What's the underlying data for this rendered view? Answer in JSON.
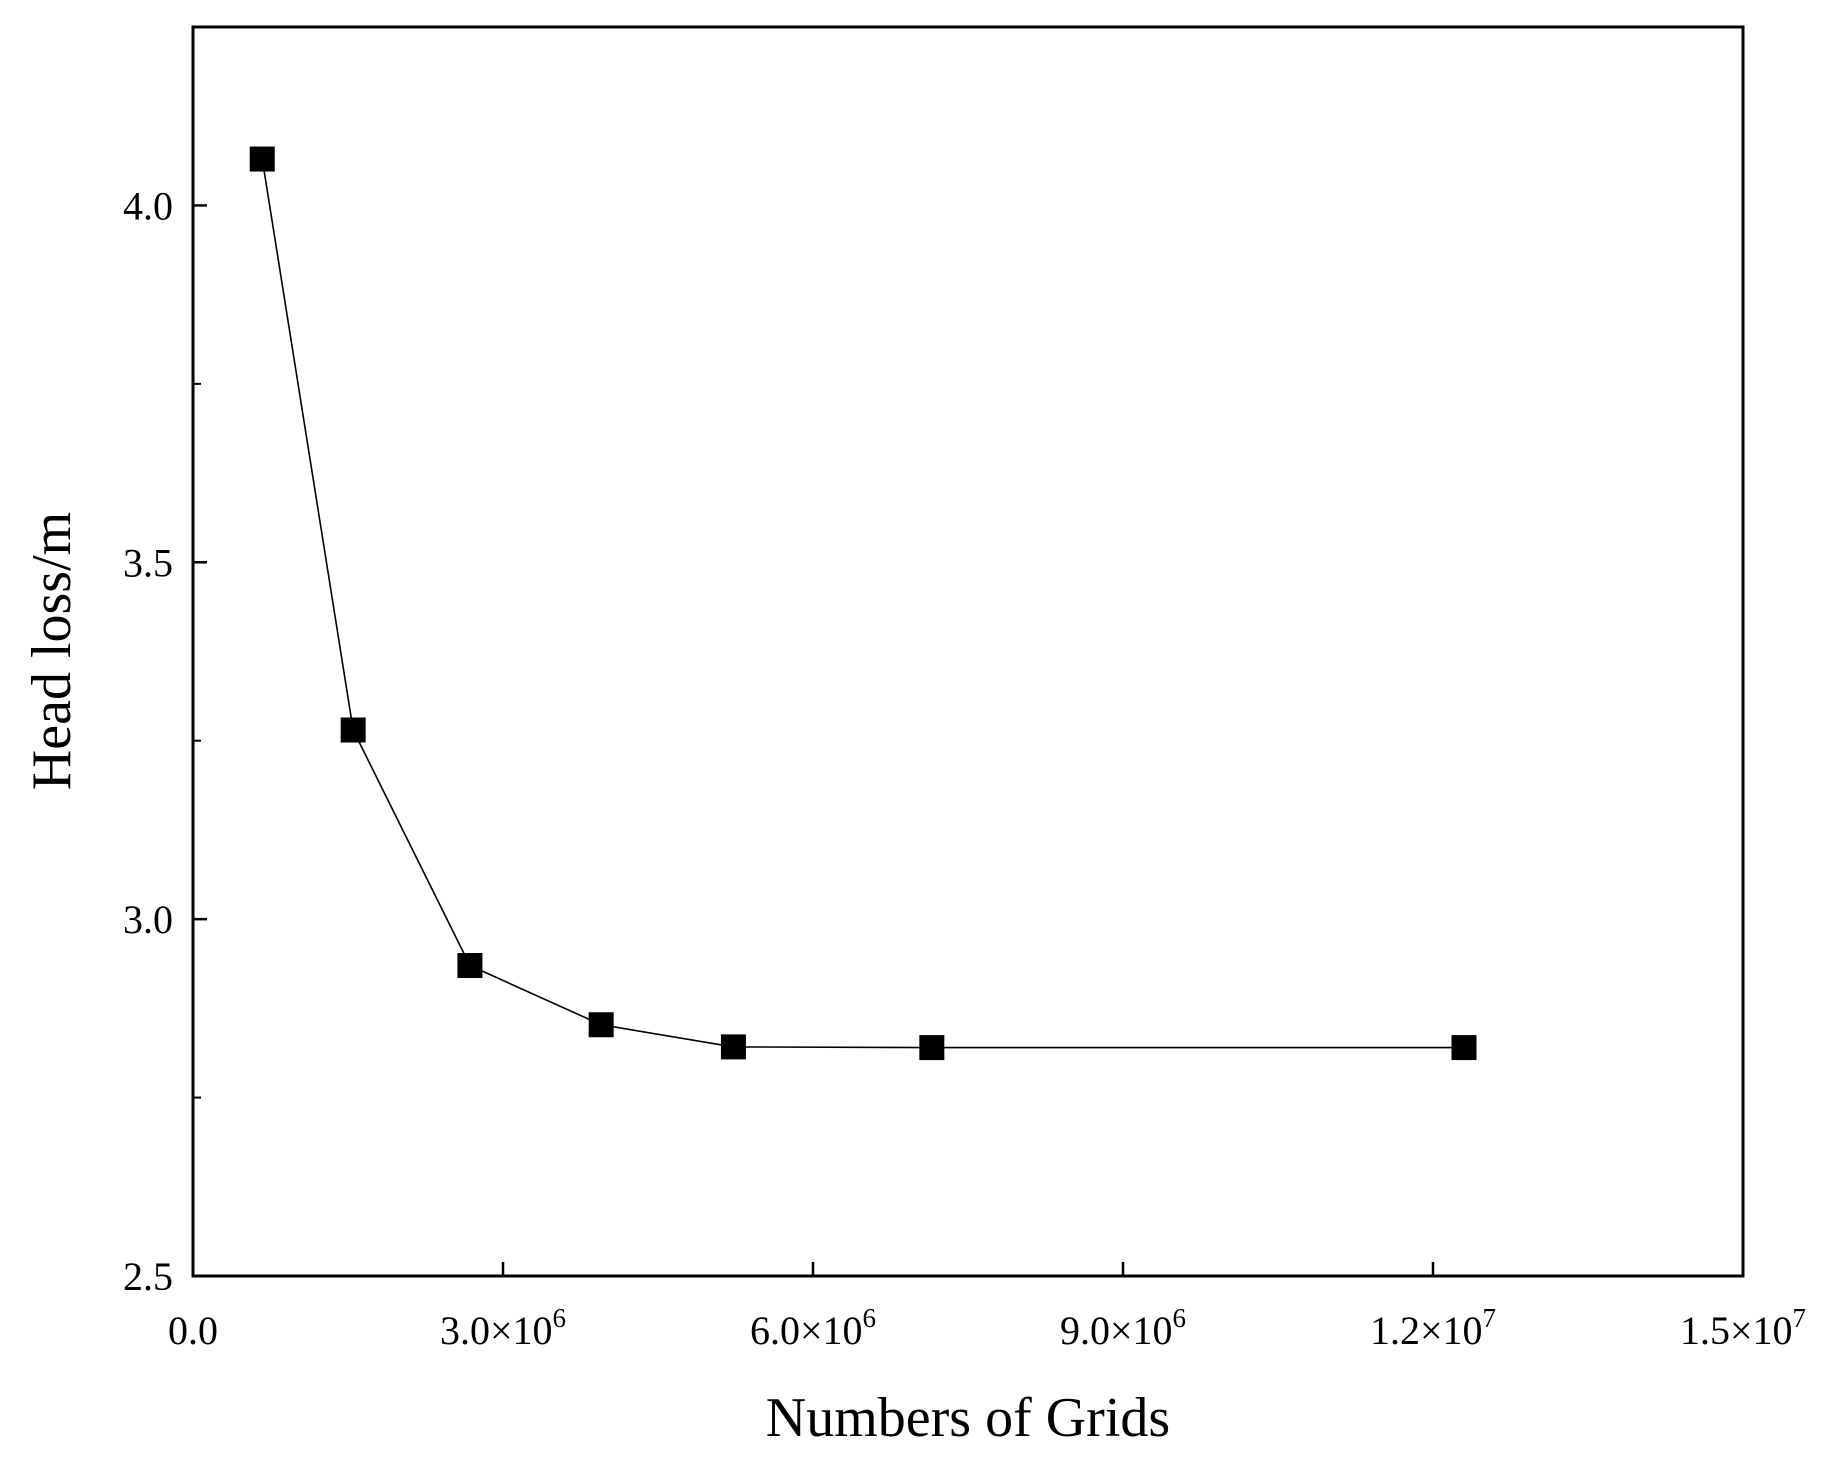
{
  "chart_data": {
    "type": "line",
    "title": "",
    "xlabel": "Numbers of Grids",
    "ylabel": "Head loss/m",
    "xlim": [
      0,
      15000000
    ],
    "ylim": [
      2.5,
      4.25
    ],
    "x_ticks": [
      {
        "value": 0,
        "mantissa": "0.0",
        "exponent": ""
      },
      {
        "value": 3000000,
        "mantissa": "3.0×10",
        "exponent": "6"
      },
      {
        "value": 6000000,
        "mantissa": "6.0×10",
        "exponent": "6"
      },
      {
        "value": 9000000,
        "mantissa": "9.0×10",
        "exponent": "6"
      },
      {
        "value": 12000000,
        "mantissa": "1.2×10",
        "exponent": "7"
      },
      {
        "value": 15000000,
        "mantissa": "1.5×10",
        "exponent": "7"
      }
    ],
    "x_minor_ticks": [],
    "y_ticks": [
      {
        "value": 2.5,
        "label": "2.5"
      },
      {
        "value": 3.0,
        "label": "3.0"
      },
      {
        "value": 3.5,
        "label": "3.5"
      },
      {
        "value": 4.0,
        "label": "4.0"
      }
    ],
    "y_minor_ticks": [
      2.75,
      3.25,
      3.75
    ],
    "grid": false,
    "legend": "none",
    "series": [
      {
        "name": "",
        "marker": "square",
        "color": "#000000",
        "x": [
          670000,
          1550000,
          2680000,
          3950000,
          5230000,
          7150000,
          12300000
        ],
        "y": [
          4.065,
          3.265,
          2.935,
          2.852,
          2.821,
          2.82,
          2.82
        ]
      }
    ]
  }
}
